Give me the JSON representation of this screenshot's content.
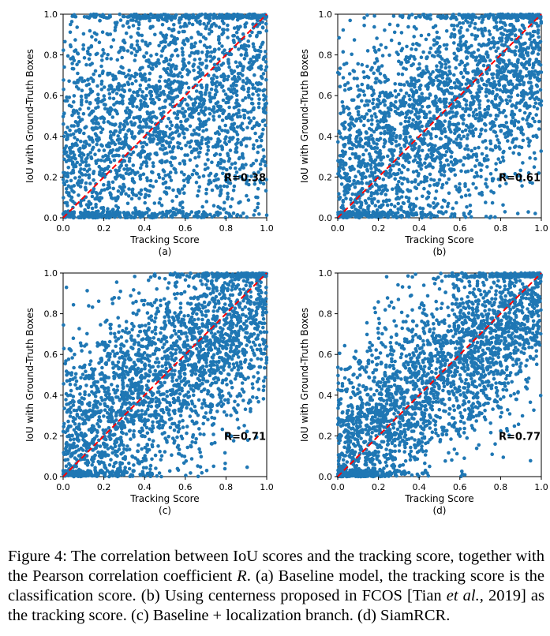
{
  "figure": {
    "chart_data": [
      {
        "type": "scatter",
        "panel_label": "(a)",
        "xlabel": "Tracking Score",
        "ylabel": "IoU with Ground-Truth Boxes",
        "xlim": [
          0,
          1
        ],
        "ylim": [
          0,
          1
        ],
        "xticks": [
          "0.0",
          "0.2",
          "0.4",
          "0.6",
          "0.8",
          "1.0"
        ],
        "yticks": [
          "0.0",
          "0.2",
          "0.4",
          "0.6",
          "0.8",
          "1.0"
        ],
        "annotation": "R=0.38",
        "pearson_r": 0.38,
        "n_points_approx": 2600,
        "point_color": "#1f77b4",
        "reference_line": {
          "from": [
            0,
            0
          ],
          "to": [
            1,
            1
          ],
          "color": "#ff0000",
          "style": "dashed"
        }
      },
      {
        "type": "scatter",
        "panel_label": "(b)",
        "xlabel": "Tracking Score",
        "ylabel": "IoU with Ground-Truth Boxes",
        "xlim": [
          0,
          1
        ],
        "ylim": [
          0,
          1
        ],
        "xticks": [
          "0.0",
          "0.2",
          "0.4",
          "0.6",
          "0.8",
          "1.0"
        ],
        "yticks": [
          "0.0",
          "0.2",
          "0.4",
          "0.6",
          "0.8",
          "1.0"
        ],
        "annotation": "R=0.61",
        "pearson_r": 0.61,
        "n_points_approx": 2600,
        "point_color": "#1f77b4",
        "reference_line": {
          "from": [
            0,
            0
          ],
          "to": [
            1,
            1
          ],
          "color": "#ff0000",
          "style": "dashed"
        }
      },
      {
        "type": "scatter",
        "panel_label": "(c)",
        "xlabel": "Tracking Score",
        "ylabel": "IoU with Ground-Truth Boxes",
        "xlim": [
          0,
          1
        ],
        "ylim": [
          0,
          1
        ],
        "xticks": [
          "0.0",
          "0.2",
          "0.4",
          "0.6",
          "0.8",
          "1.0"
        ],
        "yticks": [
          "0.0",
          "0.2",
          "0.4",
          "0.6",
          "0.8",
          "1.0"
        ],
        "annotation": "R=0.71",
        "pearson_r": 0.71,
        "n_points_approx": 2600,
        "point_color": "#1f77b4",
        "reference_line": {
          "from": [
            0,
            0
          ],
          "to": [
            1,
            1
          ],
          "color": "#ff0000",
          "style": "dashed"
        }
      },
      {
        "type": "scatter",
        "panel_label": "(d)",
        "xlabel": "Tracking Score",
        "ylabel": "IoU with Ground-Truth Boxes",
        "xlim": [
          0,
          1
        ],
        "ylim": [
          0,
          1
        ],
        "xticks": [
          "0.0",
          "0.2",
          "0.4",
          "0.6",
          "0.8",
          "1.0"
        ],
        "yticks": [
          "0.0",
          "0.2",
          "0.4",
          "0.6",
          "0.8",
          "1.0"
        ],
        "annotation": "R=0.77",
        "pearson_r": 0.77,
        "n_points_approx": 2600,
        "point_color": "#1f77b4",
        "reference_line": {
          "from": [
            0,
            0
          ],
          "to": [
            1,
            1
          ],
          "color": "#ff0000",
          "style": "dashed"
        }
      }
    ],
    "caption": {
      "part1": "Figure 4: The correlation between IoU scores and the tracking score, together with the Pearson correlation coefficient ",
      "symbol_r": "R",
      "part2": ". (a) Baseline model, the tracking score is the classification score. (b) Using centerness proposed in FCOS [Tian ",
      "etal": "et al.",
      "part3": ", 2019] as the tracking score. (c) Baseline + localization branch. (d) SiamRCR."
    }
  }
}
